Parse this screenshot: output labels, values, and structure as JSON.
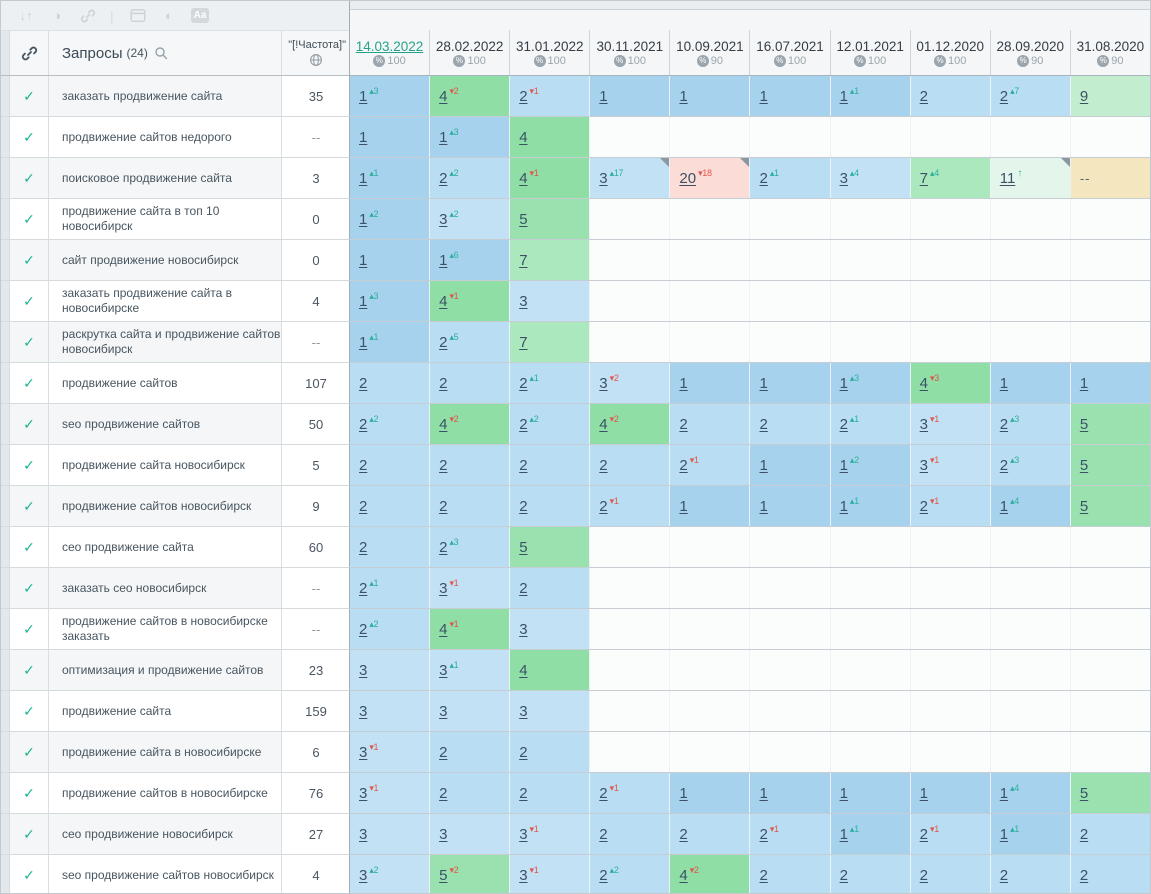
{
  "toolbar": {
    "sort_icon_glyph": "↓↑",
    "circle_icon_glyph": "◑",
    "contrast_icon_glyph": "◐",
    "divider_glyph": "|",
    "font_icon_glyph": "Aa"
  },
  "header": {
    "queries_label": "Запросы",
    "queries_count": "(24)",
    "frequency_label": "\"[!Частота]\""
  },
  "dates": [
    {
      "label": "14.03.2022",
      "pct": "100",
      "active": true
    },
    {
      "label": "28.02.2022",
      "pct": "100"
    },
    {
      "label": "31.01.2022",
      "pct": "100"
    },
    {
      "label": "30.11.2021",
      "pct": "100"
    },
    {
      "label": "10.09.2021",
      "pct": "90"
    },
    {
      "label": "16.07.2021",
      "pct": "100"
    },
    {
      "label": "12.01.2021",
      "pct": "100"
    },
    {
      "label": "01.12.2020",
      "pct": "100"
    },
    {
      "label": "28.09.2020",
      "pct": "90"
    },
    {
      "label": "31.08.2020",
      "pct": "90"
    }
  ],
  "colors": {
    "delta_up": "#2aaf9b",
    "delta_down": "#e25549",
    "check": "#1bb394",
    "active_date": "#27a38a",
    "positions": {
      "1": "#a6d2ee",
      "2": "#b9ddf3",
      "3": "#c2e1f5",
      "4": "#8edea6",
      "5": "#99e2b0",
      "7": "#ace8bd",
      "9": "#c3edcf",
      "11": "#e4f6ec",
      "20": "#fbdcd6"
    },
    "not_found": "#f4e6bf",
    "empty": "#fbfcfc"
  },
  "rows": [
    {
      "keyword": "заказать продвижение сайта",
      "freq": "35",
      "cells": [
        {
          "v": "1",
          "d": "up",
          "n": "3"
        },
        {
          "v": "4",
          "d": "down",
          "n": "2"
        },
        {
          "v": "2",
          "d": "down",
          "n": "1"
        },
        {
          "v": "1"
        },
        {
          "v": "1"
        },
        {
          "v": "1"
        },
        {
          "v": "1",
          "d": "up",
          "n": "1"
        },
        {
          "v": "2"
        },
        {
          "v": "2",
          "d": "up",
          "n": "7"
        },
        {
          "v": "9"
        }
      ]
    },
    {
      "keyword": "продвижение сайтов недорого",
      "freq": "--",
      "cells": [
        {
          "v": "1"
        },
        {
          "v": "1",
          "d": "up",
          "n": "3"
        },
        {
          "v": "4"
        },
        null,
        null,
        null,
        null,
        null,
        null,
        null
      ]
    },
    {
      "keyword": "поисковое продвижение сайта",
      "freq": "3",
      "cells": [
        {
          "v": "1",
          "d": "up",
          "n": "1"
        },
        {
          "v": "2",
          "d": "up",
          "n": "2"
        },
        {
          "v": "4",
          "d": "down",
          "n": "1"
        },
        {
          "v": "3",
          "d": "up",
          "n": "17",
          "c": true
        },
        {
          "v": "20",
          "d": "down",
          "n": "18",
          "c": true
        },
        {
          "v": "2",
          "d": "up",
          "n": "1"
        },
        {
          "v": "3",
          "d": "up",
          "n": "4"
        },
        {
          "v": "7",
          "d": "up",
          "n": "4"
        },
        {
          "v": "11",
          "d": "up",
          "n": "",
          "c": true
        },
        {
          "v": "--"
        }
      ]
    },
    {
      "keyword": "продвижение сайта в топ 10 новосибирск",
      "freq": "0",
      "cells": [
        {
          "v": "1",
          "d": "up",
          "n": "2"
        },
        {
          "v": "3",
          "d": "up",
          "n": "2"
        },
        {
          "v": "5"
        },
        null,
        null,
        null,
        null,
        null,
        null,
        null
      ]
    },
    {
      "keyword": "сайт продвижение новосибирск",
      "freq": "0",
      "cells": [
        {
          "v": "1"
        },
        {
          "v": "1",
          "d": "up",
          "n": "6"
        },
        {
          "v": "7"
        },
        null,
        null,
        null,
        null,
        null,
        null,
        null
      ]
    },
    {
      "keyword": "заказать продвижение сайта в новосибирске",
      "freq": "4",
      "cells": [
        {
          "v": "1",
          "d": "up",
          "n": "3"
        },
        {
          "v": "4",
          "d": "down",
          "n": "1"
        },
        {
          "v": "3"
        },
        null,
        null,
        null,
        null,
        null,
        null,
        null
      ]
    },
    {
      "keyword": "раскрутка сайта и продвижение сайтов новосибирск",
      "freq": "--",
      "cells": [
        {
          "v": "1",
          "d": "up",
          "n": "1"
        },
        {
          "v": "2",
          "d": "up",
          "n": "5"
        },
        {
          "v": "7"
        },
        null,
        null,
        null,
        null,
        null,
        null,
        null
      ]
    },
    {
      "keyword": "продвижение сайтов",
      "freq": "107",
      "cells": [
        {
          "v": "2"
        },
        {
          "v": "2"
        },
        {
          "v": "2",
          "d": "up",
          "n": "1"
        },
        {
          "v": "3",
          "d": "down",
          "n": "2"
        },
        {
          "v": "1"
        },
        {
          "v": "1"
        },
        {
          "v": "1",
          "d": "up",
          "n": "3"
        },
        {
          "v": "4",
          "d": "down",
          "n": "3"
        },
        {
          "v": "1"
        },
        {
          "v": "1"
        }
      ]
    },
    {
      "keyword": "seo продвижение сайтов",
      "freq": "50",
      "cells": [
        {
          "v": "2",
          "d": "up",
          "n": "2"
        },
        {
          "v": "4",
          "d": "down",
          "n": "2"
        },
        {
          "v": "2",
          "d": "up",
          "n": "2"
        },
        {
          "v": "4",
          "d": "down",
          "n": "2"
        },
        {
          "v": "2"
        },
        {
          "v": "2"
        },
        {
          "v": "2",
          "d": "up",
          "n": "1"
        },
        {
          "v": "3",
          "d": "down",
          "n": "1"
        },
        {
          "v": "2",
          "d": "up",
          "n": "3"
        },
        {
          "v": "5"
        }
      ]
    },
    {
      "keyword": "продвижение сайта новосибирск",
      "freq": "5",
      "cells": [
        {
          "v": "2"
        },
        {
          "v": "2"
        },
        {
          "v": "2"
        },
        {
          "v": "2"
        },
        {
          "v": "2",
          "d": "down",
          "n": "1"
        },
        {
          "v": "1"
        },
        {
          "v": "1",
          "d": "up",
          "n": "2"
        },
        {
          "v": "3",
          "d": "down",
          "n": "1"
        },
        {
          "v": "2",
          "d": "up",
          "n": "3"
        },
        {
          "v": "5"
        }
      ]
    },
    {
      "keyword": "продвижение сайтов новосибирск",
      "freq": "9",
      "cells": [
        {
          "v": "2"
        },
        {
          "v": "2"
        },
        {
          "v": "2"
        },
        {
          "v": "2",
          "d": "down",
          "n": "1"
        },
        {
          "v": "1"
        },
        {
          "v": "1"
        },
        {
          "v": "1",
          "d": "up",
          "n": "1"
        },
        {
          "v": "2",
          "d": "down",
          "n": "1"
        },
        {
          "v": "1",
          "d": "up",
          "n": "4"
        },
        {
          "v": "5"
        }
      ]
    },
    {
      "keyword": "сео продвижение сайта",
      "freq": "60",
      "cells": [
        {
          "v": "2"
        },
        {
          "v": "2",
          "d": "up",
          "n": "3"
        },
        {
          "v": "5"
        },
        null,
        null,
        null,
        null,
        null,
        null,
        null
      ]
    },
    {
      "keyword": "заказать сео новосибирск",
      "freq": "--",
      "cells": [
        {
          "v": "2",
          "d": "up",
          "n": "1"
        },
        {
          "v": "3",
          "d": "down",
          "n": "1"
        },
        {
          "v": "2"
        },
        null,
        null,
        null,
        null,
        null,
        null,
        null
      ]
    },
    {
      "keyword": "продвижение сайтов в новосибирске заказать",
      "freq": "--",
      "cells": [
        {
          "v": "2",
          "d": "up",
          "n": "2"
        },
        {
          "v": "4",
          "d": "down",
          "n": "1"
        },
        {
          "v": "3"
        },
        null,
        null,
        null,
        null,
        null,
        null,
        null
      ]
    },
    {
      "keyword": "оптимизация и продвижение сайтов",
      "freq": "23",
      "cells": [
        {
          "v": "3"
        },
        {
          "v": "3",
          "d": "up",
          "n": "1"
        },
        {
          "v": "4"
        },
        null,
        null,
        null,
        null,
        null,
        null,
        null
      ]
    },
    {
      "keyword": "продвижение сайта",
      "freq": "159",
      "cells": [
        {
          "v": "3"
        },
        {
          "v": "3"
        },
        {
          "v": "3"
        },
        null,
        null,
        null,
        null,
        null,
        null,
        null
      ]
    },
    {
      "keyword": "продвижение сайта в новосибирске",
      "freq": "6",
      "cells": [
        {
          "v": "3",
          "d": "down",
          "n": "1"
        },
        {
          "v": "2"
        },
        {
          "v": "2"
        },
        null,
        null,
        null,
        null,
        null,
        null,
        null
      ]
    },
    {
      "keyword": "продвижение сайтов в новосибирске",
      "freq": "76",
      "cells": [
        {
          "v": "3",
          "d": "down",
          "n": "1"
        },
        {
          "v": "2"
        },
        {
          "v": "2"
        },
        {
          "v": "2",
          "d": "down",
          "n": "1"
        },
        {
          "v": "1"
        },
        {
          "v": "1"
        },
        {
          "v": "1"
        },
        {
          "v": "1"
        },
        {
          "v": "1",
          "d": "up",
          "n": "4"
        },
        {
          "v": "5"
        }
      ]
    },
    {
      "keyword": "сео продвижение новосибирск",
      "freq": "27",
      "cells": [
        {
          "v": "3"
        },
        {
          "v": "3"
        },
        {
          "v": "3",
          "d": "down",
          "n": "1"
        },
        {
          "v": "2"
        },
        {
          "v": "2"
        },
        {
          "v": "2",
          "d": "down",
          "n": "1"
        },
        {
          "v": "1",
          "d": "up",
          "n": "1"
        },
        {
          "v": "2",
          "d": "down",
          "n": "1"
        },
        {
          "v": "1",
          "d": "up",
          "n": "1"
        },
        {
          "v": "2"
        }
      ]
    },
    {
      "keyword": "seo продвижение сайтов новосибирск",
      "freq": "4",
      "cells": [
        {
          "v": "3",
          "d": "up",
          "n": "2"
        },
        {
          "v": "5",
          "d": "down",
          "n": "2"
        },
        {
          "v": "3",
          "d": "down",
          "n": "1"
        },
        {
          "v": "2",
          "d": "up",
          "n": "2"
        },
        {
          "v": "4",
          "d": "down",
          "n": "2"
        },
        {
          "v": "2"
        },
        {
          "v": "2"
        },
        {
          "v": "2"
        },
        {
          "v": "2"
        },
        {
          "v": "2"
        }
      ]
    }
  ]
}
